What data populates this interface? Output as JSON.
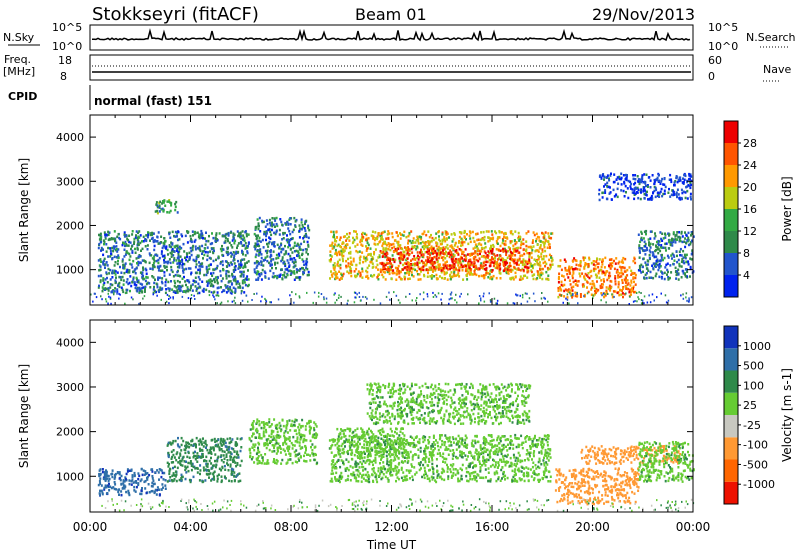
{
  "header": {
    "station": "Stokkseyri (fitACF)",
    "beam": "Beam 01",
    "date": "29/Nov/2013"
  },
  "strips": {
    "nsky_label": "N.Sky",
    "nsky_top": "10^5",
    "nsky_bottom": "10^0",
    "right_top": "10^5",
    "right_bottom": "10^0",
    "nsearch_label": "N.Search",
    "freq_label": "Freq.",
    "freq_unit": "[MHz]",
    "freq_top": "18",
    "freq_bottom": "8",
    "nave_top": "60",
    "nave_bottom": "0",
    "nave_label": "Nave",
    "cpid_label": "CPID",
    "cpid_value": "normal (fast) 151"
  },
  "chart_data": [
    {
      "type": "heatmap",
      "name": "power",
      "ylabel": "Slant Range [km]",
      "yticks": [
        "1000",
        "2000",
        "3000",
        "4000"
      ],
      "ylim": [
        200,
        4500
      ],
      "colorbar_label": "Power [dB]",
      "colorbar_ticks": [
        "4",
        "8",
        "12",
        "16",
        "20",
        "24",
        "28"
      ],
      "colorbar_colors": [
        "#0022ee",
        "#2255cc",
        "#2f8a4a",
        "#33aa44",
        "#bbcc11",
        "#ff9900",
        "#ff5500",
        "#ee0000"
      ],
      "regions": [
        {
          "t0": 0.3,
          "t1": 6.3,
          "r0": 500,
          "r1": 1900,
          "level": 8
        },
        {
          "t0": 2.5,
          "t1": 3.5,
          "r0": 2300,
          "r1": 2600,
          "level": 12
        },
        {
          "t0": 6.5,
          "t1": 8.7,
          "r0": 800,
          "r1": 2200,
          "level": 8
        },
        {
          "t0": 9.5,
          "t1": 18.4,
          "r0": 800,
          "r1": 1900,
          "level": 20
        },
        {
          "t0": 11.5,
          "t1": 17.5,
          "r0": 1000,
          "r1": 1500,
          "level": 28
        },
        {
          "t0": 18.6,
          "t1": 21.7,
          "r0": 400,
          "r1": 1300,
          "level": 24
        },
        {
          "t0": 21.8,
          "t1": 24.0,
          "r0": 800,
          "r1": 1900,
          "level": 8
        },
        {
          "t0": 20.2,
          "t1": 23.9,
          "r0": 2600,
          "r1": 3200,
          "level": 4
        }
      ]
    },
    {
      "type": "heatmap",
      "name": "velocity",
      "ylabel": "Slant Range [km]",
      "yticks": [
        "1000",
        "2000",
        "3000",
        "4000"
      ],
      "ylim": [
        200,
        4500
      ],
      "xlabel": "Time UT",
      "xticks": [
        "00:00",
        "04:00",
        "08:00",
        "12:00",
        "16:00",
        "20:00",
        "00:00"
      ],
      "xlim": [
        0,
        24
      ],
      "colorbar_label": "Velocity [m s-1]",
      "colorbar_ticks": [
        "1000",
        "500",
        "100",
        "25",
        "-25",
        "-100",
        "-500",
        "-1000"
      ],
      "colorbar_colors": [
        "#1133bb",
        "#2f6fa8",
        "#2f8a4a",
        "#66cc33",
        "#c8c8c0",
        "#ff9933",
        "#ff6600",
        "#ee1100"
      ],
      "regions": [
        {
          "t0": 0.3,
          "t1": 3.0,
          "r0": 600,
          "r1": 1200,
          "level": 500
        },
        {
          "t0": 3.0,
          "t1": 6.0,
          "r0": 900,
          "r1": 1900,
          "level": 100
        },
        {
          "t0": 6.3,
          "t1": 9.0,
          "r0": 1300,
          "r1": 2300,
          "level": 0
        },
        {
          "t0": 9.5,
          "t1": 18.3,
          "r0": 900,
          "r1": 1950,
          "level": 0
        },
        {
          "t0": 9.8,
          "t1": 12.5,
          "r0": 1500,
          "r1": 2100,
          "level": 25
        },
        {
          "t0": 18.5,
          "t1": 21.8,
          "r0": 400,
          "r1": 1200,
          "level": -100
        },
        {
          "t0": 19.5,
          "t1": 23.5,
          "r0": 1300,
          "r1": 1700,
          "level": -100
        },
        {
          "t0": 21.8,
          "t1": 24.0,
          "r0": 900,
          "r1": 1800,
          "level": 0
        },
        {
          "t0": 11.0,
          "t1": 17.5,
          "r0": 2200,
          "r1": 3100,
          "level": 0
        }
      ]
    }
  ]
}
